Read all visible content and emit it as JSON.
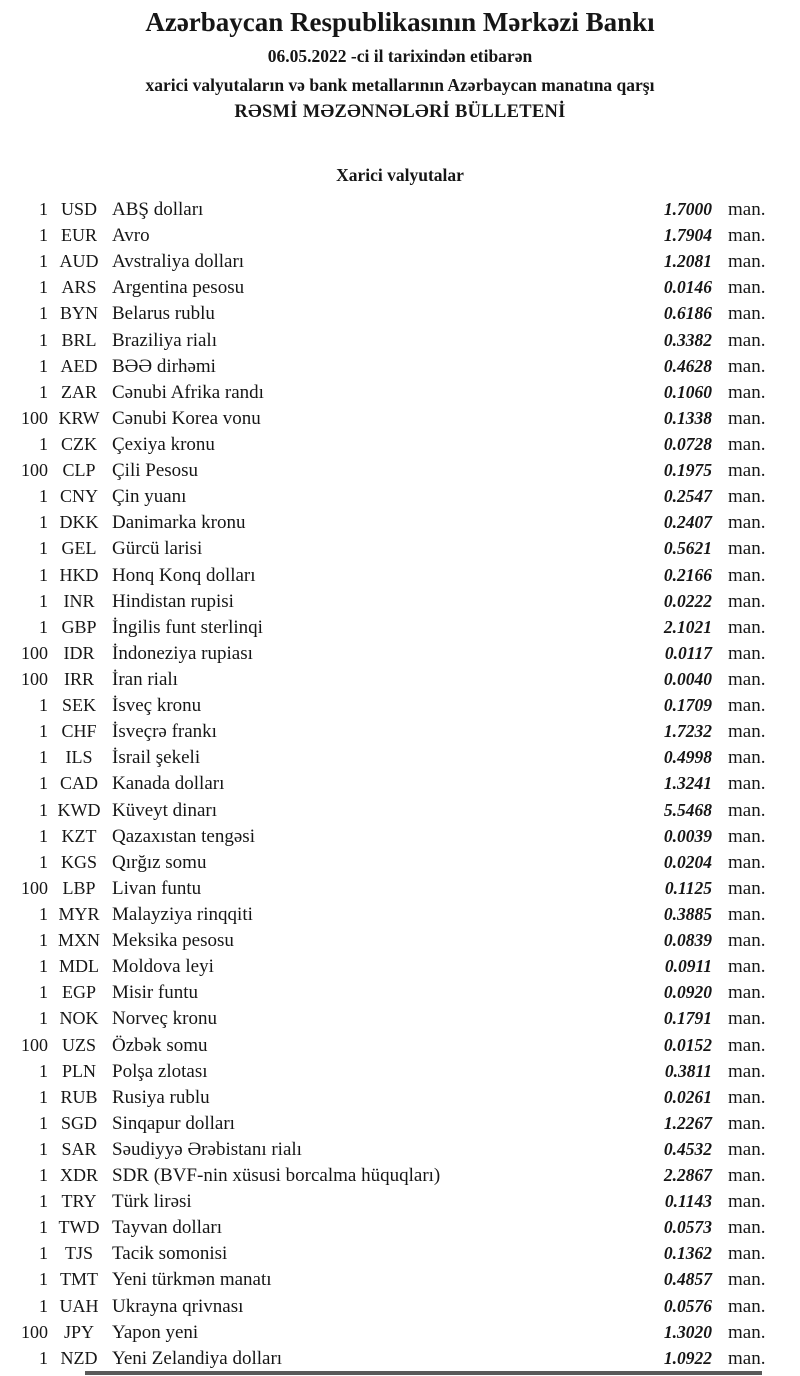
{
  "header": {
    "title": "Azərbaycan Respublikasının Mərkəzi Bankı",
    "date_line": "06.05.2022 -ci il tarixindən etibarən",
    "subject_line": "xarici valyutaların və bank metallarının Azərbaycan manatına qarşı",
    "bulletin_title": "RƏSMİ MƏZƏNNƏLƏRİ BÜLLETENİ"
  },
  "section": {
    "title": "Xarici valyutalar"
  },
  "table": {
    "unit_label": "man.",
    "rows": [
      {
        "amount": "1",
        "code": "USD",
        "name": "ABŞ dolları",
        "rate": "1.7000"
      },
      {
        "amount": "1",
        "code": "EUR",
        "name": "Avro",
        "rate": "1.7904"
      },
      {
        "amount": "1",
        "code": "AUD",
        "name": "Avstraliya dolları",
        "rate": "1.2081"
      },
      {
        "amount": "1",
        "code": "ARS",
        "name": "Argentina pesosu",
        "rate": "0.0146"
      },
      {
        "amount": "1",
        "code": "BYN",
        "name": "Belarus rublu",
        "rate": "0.6186"
      },
      {
        "amount": "1",
        "code": "BRL",
        "name": "Braziliya rialı",
        "rate": "0.3382"
      },
      {
        "amount": "1",
        "code": "AED",
        "name": "BƏƏ dirhəmi",
        "rate": "0.4628"
      },
      {
        "amount": "1",
        "code": "ZAR",
        "name": "Cənubi Afrika randı",
        "rate": "0.1060"
      },
      {
        "amount": "100",
        "code": "KRW",
        "name": "Cənubi Korea vonu",
        "rate": "0.1338"
      },
      {
        "amount": "1",
        "code": "CZK",
        "name": "Çexiya kronu",
        "rate": "0.0728"
      },
      {
        "amount": "100",
        "code": "CLP",
        "name": "Çili Pesosu",
        "rate": "0.1975"
      },
      {
        "amount": "1",
        "code": "CNY",
        "name": "Çin yuanı",
        "rate": "0.2547"
      },
      {
        "amount": "1",
        "code": "DKK",
        "name": "Danimarka kronu",
        "rate": "0.2407"
      },
      {
        "amount": "1",
        "code": "GEL",
        "name": "Gürcü larisi",
        "rate": "0.5621"
      },
      {
        "amount": "1",
        "code": "HKD",
        "name": "Honq Konq dolları",
        "rate": "0.2166"
      },
      {
        "amount": "1",
        "code": "INR",
        "name": "Hindistan rupisi",
        "rate": "0.0222"
      },
      {
        "amount": "1",
        "code": "GBP",
        "name": "İngilis funt sterlinqi",
        "rate": "2.1021"
      },
      {
        "amount": "100",
        "code": "IDR",
        "name": "İndoneziya rupiası",
        "rate": "0.0117"
      },
      {
        "amount": "100",
        "code": "IRR",
        "name": "İran rialı",
        "rate": "0.0040"
      },
      {
        "amount": "1",
        "code": "SEK",
        "name": "İsveç kronu",
        "rate": "0.1709"
      },
      {
        "amount": "1",
        "code": "CHF",
        "name": "İsveçrə frankı",
        "rate": "1.7232"
      },
      {
        "amount": "1",
        "code": "ILS",
        "name": "İsrail şekeli",
        "rate": "0.4998"
      },
      {
        "amount": "1",
        "code": "CAD",
        "name": "Kanada dolları",
        "rate": "1.3241"
      },
      {
        "amount": "1",
        "code": "KWD",
        "name": "Küveyt dinarı",
        "rate": "5.5468"
      },
      {
        "amount": "1",
        "code": "KZT",
        "name": "Qazaxıstan tengəsi",
        "rate": "0.0039"
      },
      {
        "amount": "1",
        "code": "KGS",
        "name": "Qırğız somu",
        "rate": "0.0204"
      },
      {
        "amount": "100",
        "code": "LBP",
        "name": "Livan funtu",
        "rate": "0.1125"
      },
      {
        "amount": "1",
        "code": "MYR",
        "name": "Malayziya rinqqiti",
        "rate": "0.3885"
      },
      {
        "amount": "1",
        "code": "MXN",
        "name": "Meksika pesosu",
        "rate": "0.0839"
      },
      {
        "amount": "1",
        "code": "MDL",
        "name": "Moldova leyi",
        "rate": "0.0911"
      },
      {
        "amount": "1",
        "code": "EGP",
        "name": "Misir funtu",
        "rate": "0.0920"
      },
      {
        "amount": "1",
        "code": "NOK",
        "name": "Norveç kronu",
        "rate": "0.1791"
      },
      {
        "amount": "100",
        "code": "UZS",
        "name": "Özbək somu",
        "rate": "0.0152"
      },
      {
        "amount": "1",
        "code": "PLN",
        "name": "Polşa zlotası",
        "rate": "0.3811"
      },
      {
        "amount": "1",
        "code": "RUB",
        "name": "Rusiya rublu",
        "rate": "0.0261"
      },
      {
        "amount": "1",
        "code": "SGD",
        "name": "Sinqapur dolları",
        "rate": "1.2267"
      },
      {
        "amount": "1",
        "code": "SAR",
        "name": "Səudiyyə Ərəbistanı rialı",
        "rate": "0.4532"
      },
      {
        "amount": "1",
        "code": "XDR",
        "name": "SDR (BVF-nin xüsusi borcalma hüquqları)",
        "rate": "2.2867"
      },
      {
        "amount": "1",
        "code": "TRY",
        "name": "Türk lirəsi",
        "rate": "0.1143"
      },
      {
        "amount": "1",
        "code": "TWD",
        "name": "Tayvan dolları",
        "rate": "0.0573"
      },
      {
        "amount": "1",
        "code": "TJS",
        "name": "Tacik somonisi",
        "rate": "0.1362"
      },
      {
        "amount": "1",
        "code": "TMT",
        "name": "Yeni türkmən manatı",
        "rate": "0.4857"
      },
      {
        "amount": "1",
        "code": "UAH",
        "name": "Ukrayna qrivnası",
        "rate": "0.0576"
      },
      {
        "amount": "100",
        "code": "JPY",
        "name": "Yapon yeni",
        "rate": "1.3020"
      },
      {
        "amount": "1",
        "code": "NZD",
        "name": "Yeni Zelandiya dolları",
        "rate": "1.0922"
      }
    ]
  }
}
